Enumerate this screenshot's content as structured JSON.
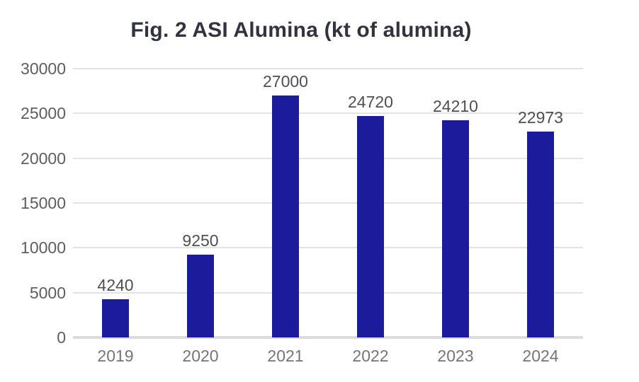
{
  "page": {
    "background": "#ffffff"
  },
  "chart_data": {
    "type": "bar",
    "title": "Fig. 2 ASI Alumina (kt of alumina)",
    "categories": [
      "2019",
      "2020",
      "2021",
      "2022",
      "2023",
      "2024"
    ],
    "values": [
      4240,
      9250,
      27000,
      24720,
      24210,
      22973
    ],
    "value_labels": [
      "4240",
      "9250",
      "27000",
      "24720",
      "24210",
      "22973"
    ],
    "xlabel": "",
    "ylabel": "",
    "ylim": [
      0,
      30000
    ],
    "yticks": [
      0,
      5000,
      10000,
      15000,
      20000,
      25000,
      30000
    ],
    "ytick_labels": [
      "0",
      "5000",
      "10000",
      "15000",
      "20000",
      "25000",
      "30000"
    ],
    "grid": true,
    "legend": "none",
    "colors": {
      "bar": "#1b1b9b",
      "title": "#31343f",
      "y_tick_label": "#5e5e5e",
      "value_label": "#4f4f4f",
      "x_tick_label": "#757575",
      "gridline": "#e3e3e3",
      "baseline": "#dcdcdc",
      "background": "#ffffff"
    }
  }
}
